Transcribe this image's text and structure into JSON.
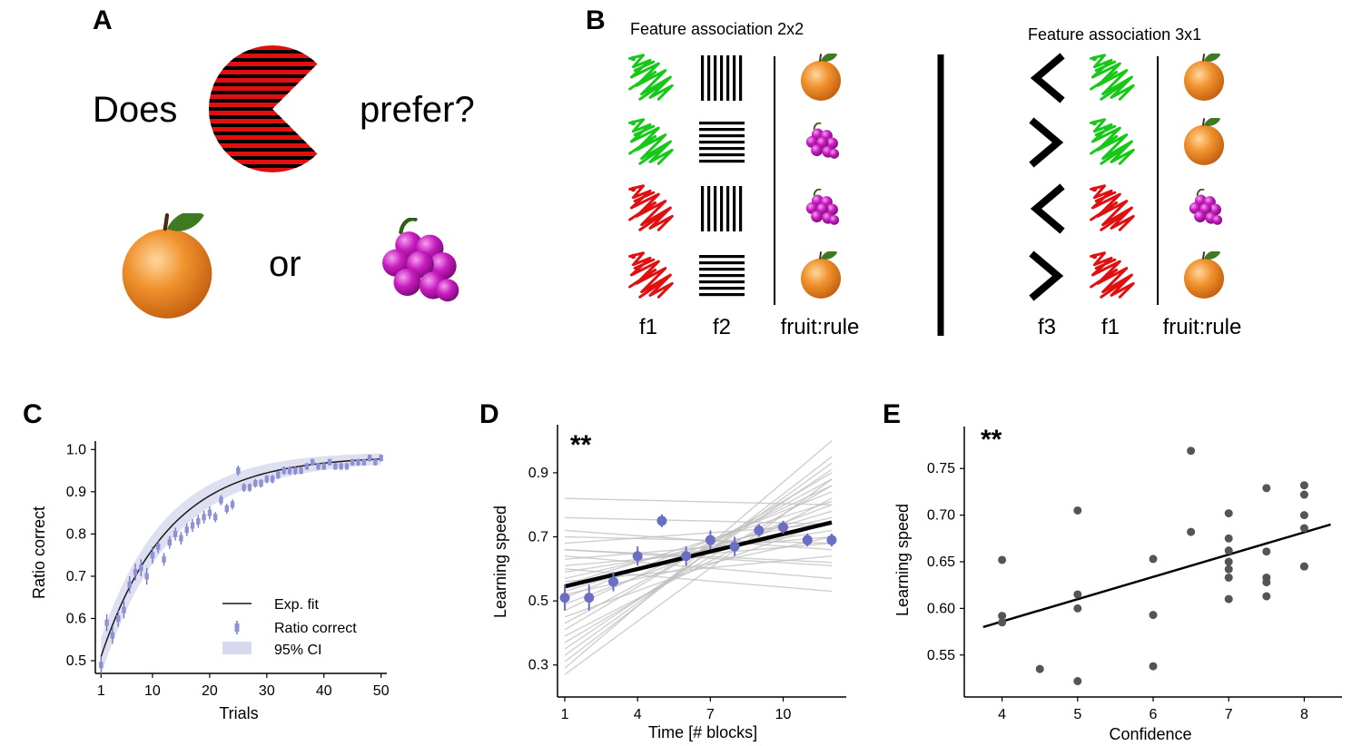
{
  "colors": {
    "red": "#e01010",
    "green": "#18c818",
    "purple": "#6b6fc4",
    "purple_light": "#c7c9e8",
    "dark": "#1a1a1a",
    "gray_point": "#555555",
    "gray_line": "#bfbfbf",
    "orange": "#ee8a2a",
    "grape": "#c01cb8",
    "leaf": "#3f7a22"
  },
  "panel_a": {
    "letter": "A",
    "does": "Does",
    "prefer": "prefer?",
    "or": "or",
    "creature_icon": "pacman-creature-icon",
    "fruit_icons": [
      "orange-icon",
      "grapes-icon"
    ]
  },
  "panel_b": {
    "letter": "B",
    "left": {
      "title": "Feature association 2x2",
      "col_labels": [
        "f1",
        "f2",
        "fruit:rule"
      ],
      "rows": [
        {
          "f1": "green",
          "f2": "vertical",
          "fruit": "orange"
        },
        {
          "f1": "green",
          "f2": "horizontal",
          "fruit": "grapes"
        },
        {
          "f1": "red",
          "f2": "vertical",
          "fruit": "grapes"
        },
        {
          "f1": "red",
          "f2": "horizontal",
          "fruit": "orange"
        }
      ]
    },
    "right": {
      "title": "Feature association 3x1",
      "col_labels": [
        "f3",
        "f1",
        "fruit:rule"
      ],
      "rows": [
        {
          "f3": "left",
          "f1": "green",
          "fruit": "orange"
        },
        {
          "f3": "right",
          "f1": "green",
          "fruit": "orange"
        },
        {
          "f3": "left",
          "f1": "red",
          "fruit": "grapes"
        },
        {
          "f3": "right",
          "f1": "red",
          "fruit": "orange"
        }
      ]
    }
  },
  "chart_data": [
    {
      "id": "C",
      "type": "line",
      "letter": "C",
      "xlabel": "Trials",
      "ylabel": "Ratio correct",
      "xlim": [
        0,
        51
      ],
      "ylim": [
        0.47,
        1.02
      ],
      "xticks": [
        1,
        10,
        20,
        30,
        40,
        50
      ],
      "yticks": [
        0.5,
        0.6,
        0.7,
        0.8,
        0.9,
        1.0
      ],
      "ytick_labels": [
        "0.5",
        "0.6",
        "0.7",
        "0.8",
        "0.9",
        "1.0"
      ],
      "legend": {
        "position": "bottom-right",
        "entries": [
          "Exp. fit",
          "Ratio correct",
          "95% CI"
        ]
      },
      "fit": {
        "model": "exponential",
        "asymptote": 0.985,
        "start": 0.51,
        "rate": 0.085,
        "ci_halfwidth": 0.04
      },
      "series": [
        {
          "name": "Ratio correct",
          "x": [
            1,
            2,
            3,
            4,
            5,
            6,
            7,
            8,
            9,
            10,
            11,
            12,
            13,
            14,
            15,
            16,
            17,
            18,
            19,
            20,
            21,
            22,
            23,
            24,
            25,
            26,
            27,
            28,
            29,
            30,
            31,
            32,
            33,
            34,
            35,
            36,
            37,
            38,
            39,
            40,
            41,
            42,
            43,
            44,
            45,
            46,
            47,
            48,
            49,
            50
          ],
          "y": [
            0.49,
            0.59,
            0.56,
            0.6,
            0.62,
            0.68,
            0.71,
            0.72,
            0.7,
            0.75,
            0.77,
            0.74,
            0.78,
            0.8,
            0.79,
            0.81,
            0.82,
            0.83,
            0.84,
            0.85,
            0.84,
            0.88,
            0.86,
            0.87,
            0.95,
            0.91,
            0.91,
            0.92,
            0.92,
            0.93,
            0.93,
            0.94,
            0.95,
            0.95,
            0.95,
            0.95,
            0.96,
            0.97,
            0.96,
            0.96,
            0.97,
            0.96,
            0.96,
            0.96,
            0.97,
            0.97,
            0.97,
            0.98,
            0.97,
            0.98
          ],
          "err": [
            0.02,
            0.02,
            0.02,
            0.02,
            0.02,
            0.02,
            0.02,
            0.02,
            0.02,
            0.02,
            0.015,
            0.015,
            0.015,
            0.015,
            0.015,
            0.015,
            0.015,
            0.015,
            0.015,
            0.015,
            0.012,
            0.012,
            0.012,
            0.012,
            0.012,
            0.01,
            0.01,
            0.01,
            0.01,
            0.01,
            0.01,
            0.01,
            0.01,
            0.01,
            0.01,
            0.008,
            0.008,
            0.008,
            0.008,
            0.008,
            0.008,
            0.008,
            0.008,
            0.008,
            0.008,
            0.008,
            0.008,
            0.008,
            0.008,
            0.008
          ]
        }
      ]
    },
    {
      "id": "D",
      "type": "line",
      "letter": "D",
      "annotation": "**",
      "xlabel": "Time [# blocks]",
      "ylabel": "Learning speed",
      "xlim": [
        0.7,
        12.6
      ],
      "ylim": [
        0.2,
        1.05
      ],
      "xticks": [
        1,
        4,
        7,
        10
      ],
      "yticks": [
        0.3,
        0.5,
        0.7,
        0.9
      ],
      "ytick_labels": [
        "0.3",
        "0.5",
        "0.7",
        "0.9"
      ],
      "fit_line": {
        "x": [
          1,
          12
        ],
        "y": [
          0.545,
          0.745
        ]
      },
      "subject_lines": [
        [
          0.82,
          0.8
        ],
        [
          0.76,
          0.74
        ],
        [
          0.72,
          0.66
        ],
        [
          0.66,
          0.61
        ],
        [
          0.64,
          0.57
        ],
        [
          0.6,
          0.53
        ],
        [
          0.63,
          0.7
        ],
        [
          0.61,
          0.68
        ],
        [
          0.59,
          0.72
        ],
        [
          0.57,
          0.76
        ],
        [
          0.55,
          0.81
        ],
        [
          0.53,
          0.78
        ],
        [
          0.51,
          0.84
        ],
        [
          0.49,
          0.8
        ],
        [
          0.47,
          0.86
        ],
        [
          0.45,
          0.75
        ],
        [
          0.43,
          0.88
        ],
        [
          0.41,
          0.9
        ],
        [
          0.39,
          0.82
        ],
        [
          0.37,
          0.86
        ],
        [
          0.35,
          0.91
        ],
        [
          0.33,
          0.93
        ],
        [
          0.31,
          0.95
        ],
        [
          0.29,
          1.0
        ],
        [
          0.27,
          0.88
        ],
        [
          0.56,
          0.64
        ],
        [
          0.66,
          0.62
        ],
        [
          0.7,
          0.68
        ],
        [
          0.68,
          0.74
        ],
        [
          0.52,
          0.7
        ]
      ],
      "series": [
        {
          "name": "Block mean",
          "x": [
            1,
            2,
            3,
            4,
            5,
            6,
            7,
            8,
            9,
            10,
            11,
            12
          ],
          "y": [
            0.51,
            0.51,
            0.56,
            0.64,
            0.75,
            0.64,
            0.69,
            0.67,
            0.72,
            0.73,
            0.69,
            0.69
          ],
          "err": [
            0.04,
            0.04,
            0.03,
            0.03,
            0.02,
            0.03,
            0.03,
            0.03,
            0.02,
            0.02,
            0.02,
            0.02
          ]
        }
      ]
    },
    {
      "id": "E",
      "type": "scatter",
      "letter": "E",
      "annotation": "**",
      "xlabel": "Confidence",
      "ylabel": "Learning speed",
      "xlim": [
        3.5,
        8.5
      ],
      "ylim": [
        0.505,
        0.795
      ],
      "xticks": [
        4,
        5,
        6,
        7,
        8
      ],
      "yticks": [
        0.55,
        0.6,
        0.65,
        0.7,
        0.75
      ],
      "ytick_labels": [
        "0.55",
        "0.60",
        "0.65",
        "0.70",
        "0.75"
      ],
      "fit_line": {
        "x": [
          3.75,
          8.35
        ],
        "y": [
          0.58,
          0.69
        ]
      },
      "series": [
        {
          "name": "Subjects",
          "x": [
            4,
            4,
            4,
            4.5,
            5,
            5,
            5,
            5,
            6,
            6,
            6,
            6.5,
            6.5,
            7,
            7,
            7,
            7,
            7,
            7,
            7,
            7.5,
            7.5,
            7.5,
            7.5,
            7.5,
            8,
            8,
            8,
            8,
            8,
            8
          ],
          "y": [
            0.652,
            0.592,
            0.585,
            0.535,
            0.705,
            0.615,
            0.6,
            0.522,
            0.653,
            0.593,
            0.538,
            0.769,
            0.682,
            0.702,
            0.675,
            0.662,
            0.65,
            0.642,
            0.633,
            0.61,
            0.729,
            0.661,
            0.633,
            0.628,
            0.613,
            0.732,
            0.722,
            0.7,
            0.686,
            0.645,
            0.645
          ]
        }
      ]
    }
  ]
}
